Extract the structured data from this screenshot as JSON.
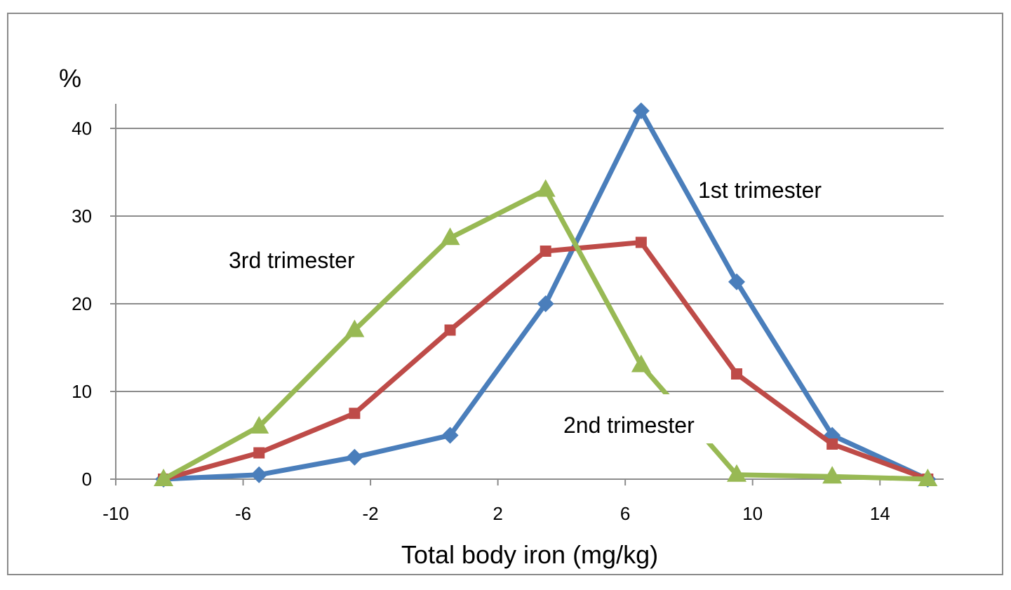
{
  "chart_data": {
    "type": "line",
    "xlabel": "Total body iron (mg/kg)",
    "ylabel": "%",
    "xlim": [
      -10,
      16
    ],
    "ylim": [
      0,
      40
    ],
    "x_ticks": [
      "-10",
      "-6",
      "-2",
      "2",
      "6",
      "10",
      "14"
    ],
    "y_ticks": [
      "0",
      "10",
      "20",
      "30",
      "40"
    ],
    "grid": "horizontal",
    "legend": "none",
    "series": [
      {
        "name": "1st trimester",
        "color": "#4a7ebb",
        "marker": "diamond",
        "x": [
          -8.5,
          -5.5,
          -2.5,
          0.5,
          3.5,
          6.5,
          9.5,
          12.5,
          15.5
        ],
        "y": [
          0,
          0.5,
          2.5,
          5,
          20,
          42,
          22.5,
          5,
          0
        ]
      },
      {
        "name": "2nd trimester",
        "color": "#be4b48",
        "marker": "square",
        "x": [
          -8.5,
          -5.5,
          -2.5,
          0.5,
          3.5,
          6.5,
          9.5,
          12.5,
          15.5
        ],
        "y": [
          0,
          3,
          7.5,
          17,
          26,
          27,
          12,
          4,
          0
        ]
      },
      {
        "name": "3rd trimester",
        "color": "#98b954",
        "marker": "triangle",
        "x": [
          -8.5,
          -5.5,
          -2.5,
          0.5,
          3.5,
          6.5,
          9.5,
          12.5,
          15.5
        ],
        "y": [
          0,
          6,
          17,
          27.5,
          33,
          13,
          0.5,
          0.3,
          0
        ]
      }
    ],
    "annotations": [
      "1st trimester",
      "2nd trimester",
      "3rd trimester"
    ]
  }
}
